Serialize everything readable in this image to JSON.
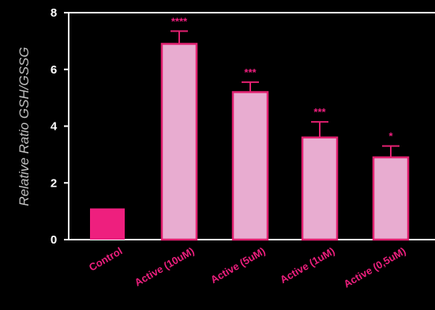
{
  "chart_data": {
    "type": "bar",
    "categories": [
      "Control",
      "Active (10uM)",
      "Active (5uM)",
      "Active (1uM)",
      "Active (0,5uM)"
    ],
    "values": [
      1.1,
      6.9,
      5.2,
      3.6,
      2.9
    ],
    "errors": [
      0,
      0.45,
      0.35,
      0.55,
      0.4
    ],
    "significance": [
      "",
      "****",
      "***",
      "***",
      "*"
    ],
    "ylabel": "Relative Ratio GSH/GSSG",
    "xlabel": "",
    "title": "",
    "ylim": [
      0,
      8
    ],
    "yticks": [
      0,
      2,
      4,
      6,
      8
    ],
    "grid": false,
    "colors": {
      "background": "#000000",
      "control_fill": "#ee1f7e",
      "bar_fill": "#e8acd0",
      "bar_edge": "#e0206f",
      "axis": "#ffffff",
      "xtick_text": "#ee1f7e",
      "significance": "#ee1f7e",
      "ylabel_text": "#bfbfbf"
    }
  }
}
